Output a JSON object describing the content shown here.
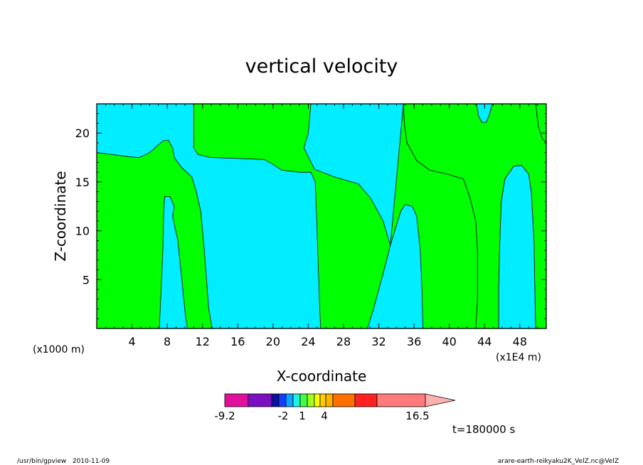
{
  "chart_data": {
    "type": "contour",
    "title": "vertical velocity",
    "xlabel": "X-coordinate",
    "ylabel": "Z-coordinate",
    "x_unit_left": "(x1000 m)",
    "x_unit_right": "(x1E4 m)",
    "xlim": [
      0,
      51
    ],
    "ylim": [
      0,
      23
    ],
    "x_ticks": [
      4,
      8,
      12,
      16,
      20,
      24,
      28,
      32,
      36,
      40,
      44,
      48
    ],
    "y_ticks": [
      5,
      10,
      15,
      20
    ],
    "contour_colors": {
      "positive": "#00ff00",
      "negative": "#00eeff"
    },
    "colorbar": {
      "labels": [
        "-9.2",
        "-2",
        "1",
        "4",
        "16.5"
      ],
      "colors": [
        "#e0109a",
        "#7a10c0",
        "#1010a0",
        "#1040ff",
        "#10a0ff",
        "#20f0e0",
        "#40ff40",
        "#a0ff20",
        "#ffff00",
        "#ffd000",
        "#ffb000",
        "#ff7000",
        "#ff2020",
        "#ff7a7a",
        "#ffb0b0"
      ]
    },
    "time_label": "t=180000 s"
  },
  "footer": {
    "left": "/usr/bin/gpview   2010-11-09",
    "right": "arare-earth-reikyaku2K_VelZ.nc@VelZ"
  }
}
